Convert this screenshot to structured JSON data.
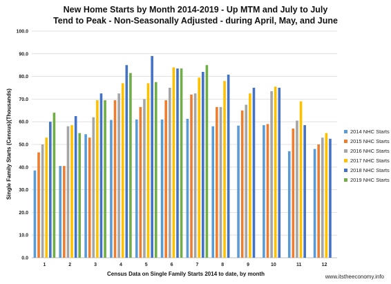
{
  "chart_data": {
    "type": "bar",
    "title_line1": "New Home Starts by Month 2014-2019 - Up MTM and July to July",
    "title_line2": "Tend to Peak - Non-Seasonally Adjusted - during April, May, and June",
    "xlabel": "Census Data on Single Family Starts 2014 to date, by month",
    "ylabel": "Single Family Starts (Census)(Thousands)",
    "ylim": [
      0,
      100
    ],
    "yticks": [
      "0.0",
      "10.0",
      "20.0",
      "30.0",
      "40.0",
      "50.0",
      "60.0",
      "70.0",
      "80.0",
      "90.0",
      "100.0"
    ],
    "categories": [
      "1",
      "2",
      "3",
      "4",
      "5",
      "6",
      "7",
      "8",
      "9",
      "10",
      "11",
      "12"
    ],
    "grid": "horizontal",
    "legend_position": "right",
    "series": [
      {
        "name": "2014 NHC Starts",
        "color": "#5B9BD5",
        "values": [
          38.5,
          40.5,
          54.5,
          60.8,
          61.0,
          61.0,
          61.3,
          58.0,
          58.3,
          58.5,
          47.0,
          48.0
        ]
      },
      {
        "name": "2015 NHC Starts",
        "color": "#ED7D31",
        "values": [
          46.5,
          40.5,
          53.0,
          69.5,
          66.5,
          69.5,
          72.0,
          66.5,
          65.0,
          59.0,
          57.0,
          50.0
        ]
      },
      {
        "name": "2016 NHC Starts",
        "color": "#A5A5A5",
        "values": [
          50.0,
          58.0,
          62.0,
          72.5,
          70.0,
          75.0,
          72.5,
          66.5,
          67.5,
          73.5,
          60.5,
          53.0
        ]
      },
      {
        "name": "2017 NHC Starts",
        "color": "#FFC000",
        "values": [
          53.0,
          58.5,
          69.5,
          77.0,
          77.0,
          84.0,
          79.5,
          78.0,
          72.5,
          75.5,
          69.0,
          55.0
        ]
      },
      {
        "name": "2018 NHC Starts",
        "color": "#4472C4",
        "values": [
          60.0,
          62.5,
          72.5,
          85.0,
          89.0,
          83.5,
          82.0,
          80.8,
          75.0,
          75.0,
          58.5,
          52.5
        ]
      },
      {
        "name": "2019 NHC Starts",
        "color": "#70AD47",
        "values": [
          64.0,
          55.0,
          69.5,
          81.5,
          77.5,
          83.5,
          85.0,
          null,
          null,
          null,
          null,
          null
        ]
      }
    ]
  },
  "watermark": "www.itstheeconomy.info"
}
